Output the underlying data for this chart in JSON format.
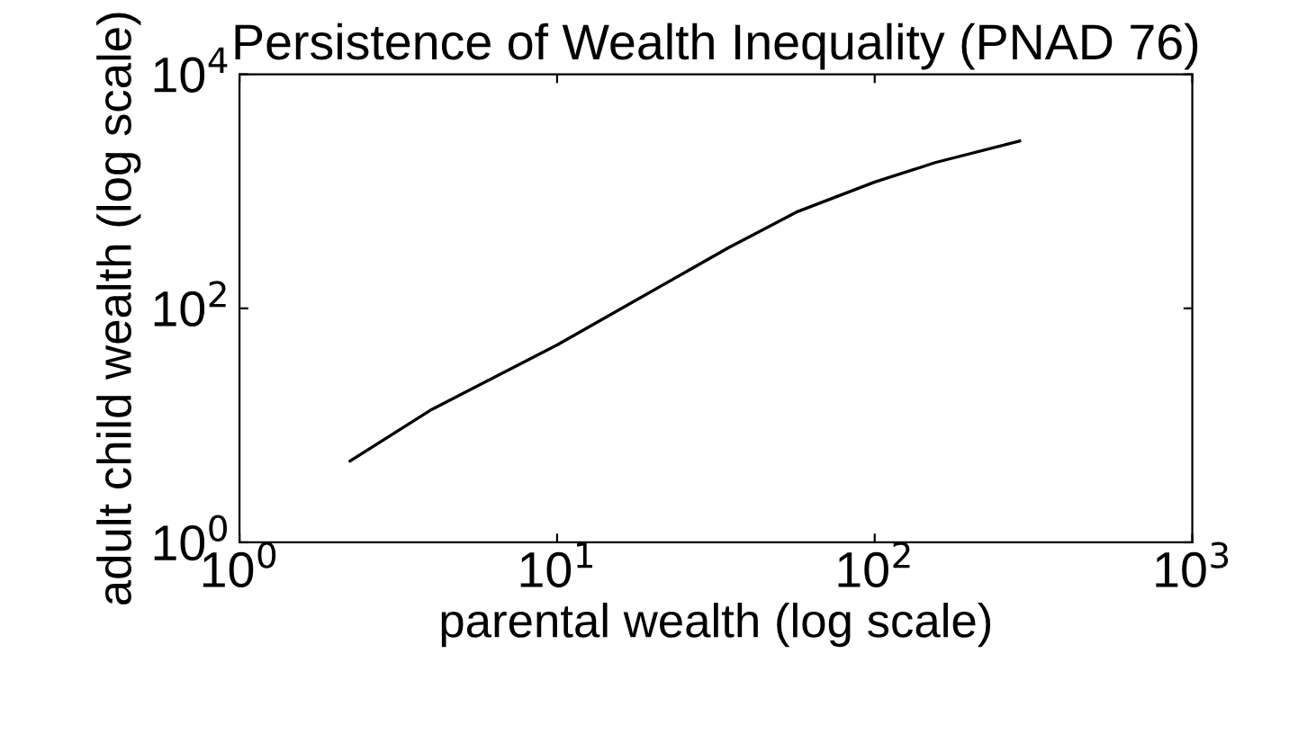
{
  "chart_data": {
    "type": "line",
    "title": "Persistence of Wealth Inequality (PNAD 76)",
    "xlabel": "parental wealth (log scale)",
    "ylabel": "adult child wealth (log scale)",
    "log": "xy",
    "x": [
      2.23,
      3.98,
      10,
      34.6,
      57.3,
      100,
      155,
      286
    ],
    "series": [
      {
        "color": "#000000",
        "values": [
          4.96,
          13.4,
          48.7,
          329,
          673,
          1200,
          1760,
          2690
        ]
      }
    ],
    "xlim": [
      1,
      1000
    ],
    "xticks": [
      {
        "value": 1,
        "label": "10$^{0}$"
      },
      {
        "value": 10,
        "label": "10$^{1}$"
      },
      {
        "value": 100,
        "label": "10$^{2}$"
      },
      {
        "value": 1000,
        "label": "10$^{3}$"
      }
    ],
    "ylim": [
      1,
      10000
    ],
    "yticks": [
      {
        "value": 1,
        "label": "10$^{0}$"
      },
      {
        "value": 100,
        "label": "10$^{2}$"
      },
      {
        "value": 10000,
        "label": "10$^{4}$"
      }
    ],
    "grid": false,
    "legend": false
  }
}
